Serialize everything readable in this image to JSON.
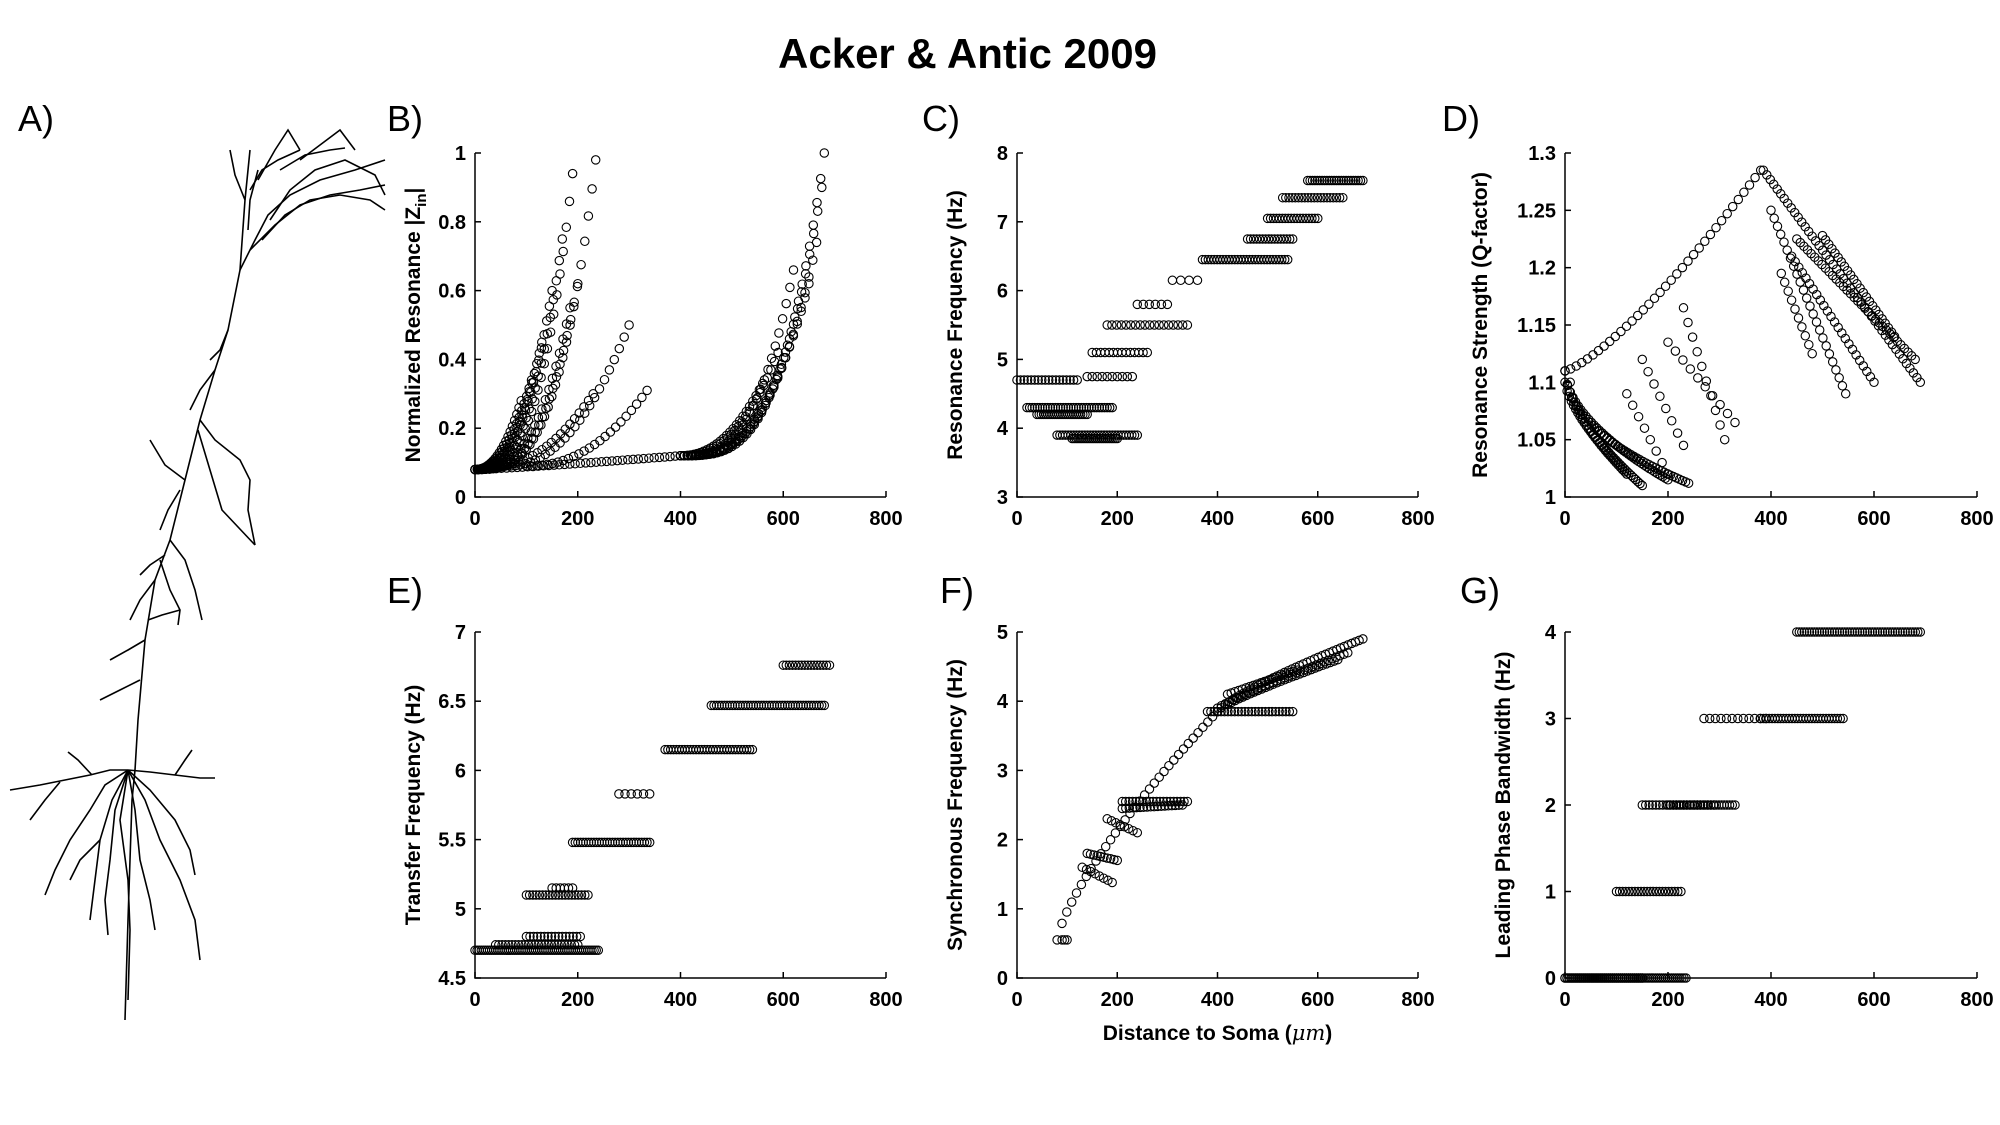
{
  "figure": {
    "title": "Acker & Antic 2009",
    "panel_labels": [
      "A)",
      "B)",
      "C)",
      "D)",
      "E)",
      "F)",
      "G)"
    ],
    "xlabel_shared": "Distance to Soma (",
    "xlabel_unit": "μm",
    "xlabel_close": ")",
    "neuron_icon": "pyramidal-neuron-morphology-icon"
  },
  "chart_data": [
    {
      "panel": "B)",
      "type": "scatter",
      "title": "",
      "xlabel": "",
      "ylabel": "Normalized Resonance |Z",
      "ylabel_sub": "in",
      "ylabel_close": "|",
      "xlim": [
        0,
        800
      ],
      "ylim": [
        0,
        1
      ],
      "xticks": [
        0,
        200,
        400,
        600,
        800
      ],
      "yticks": [
        0,
        0.2,
        0.4,
        0.6,
        0.8,
        1
      ],
      "ytick_labels": [
        "0",
        "0.2",
        "0.4",
        "0.6",
        "0.8",
        "1"
      ],
      "grid": false,
      "branches": [
        {
          "x0": 0,
          "x1": 90,
          "y0": 0.08,
          "y1": 0.28,
          "n": 22,
          "p": 2.2
        },
        {
          "x0": 0,
          "x1": 110,
          "y0": 0.08,
          "y1": 0.34,
          "n": 24,
          "p": 2.2
        },
        {
          "x0": 0,
          "x1": 130,
          "y0": 0.08,
          "y1": 0.45,
          "n": 28,
          "p": 2.4
        },
        {
          "x0": 0,
          "x1": 150,
          "y0": 0.08,
          "y1": 0.6,
          "n": 30,
          "p": 2.6
        },
        {
          "x0": 0,
          "x1": 170,
          "y0": 0.08,
          "y1": 0.75,
          "n": 30,
          "p": 2.8
        },
        {
          "x0": 0,
          "x1": 190,
          "y0": 0.08,
          "y1": 0.94,
          "n": 32,
          "p": 3.0
        },
        {
          "x0": 0,
          "x1": 235,
          "y0": 0.08,
          "y1": 0.98,
          "n": 34,
          "p": 3.2
        },
        {
          "x0": 0,
          "x1": 200,
          "y0": 0.08,
          "y1": 0.62,
          "n": 30,
          "p": 3.0
        },
        {
          "x0": 0,
          "x1": 185,
          "y0": 0.08,
          "y1": 0.55,
          "n": 28,
          "p": 2.8
        },
        {
          "x0": 40,
          "x1": 230,
          "y0": 0.09,
          "y1": 0.3,
          "n": 22,
          "p": 2.0
        },
        {
          "x0": 60,
          "x1": 300,
          "y0": 0.09,
          "y1": 0.5,
          "n": 26,
          "p": 2.2
        },
        {
          "x0": 100,
          "x1": 335,
          "y0": 0.09,
          "y1": 0.31,
          "n": 24,
          "p": 2.2
        },
        {
          "x0": 0,
          "x1": 400,
          "y0": 0.08,
          "y1": 0.12,
          "n": 40,
          "p": 1.2
        },
        {
          "x0": 400,
          "x1": 680,
          "y0": 0.12,
          "y1": 1.0,
          "n": 40,
          "p": 3.4
        },
        {
          "x0": 400,
          "x1": 665,
          "y0": 0.12,
          "y1": 0.74,
          "n": 36,
          "p": 3.0
        },
        {
          "x0": 400,
          "x1": 650,
          "y0": 0.12,
          "y1": 0.62,
          "n": 34,
          "p": 2.8
        },
        {
          "x0": 400,
          "x1": 620,
          "y0": 0.12,
          "y1": 0.66,
          "n": 32,
          "p": 3.0
        },
        {
          "x0": 400,
          "x1": 590,
          "y0": 0.12,
          "y1": 0.42,
          "n": 28,
          "p": 2.4
        },
        {
          "x0": 400,
          "x1": 560,
          "y0": 0.12,
          "y1": 0.33,
          "n": 26,
          "p": 2.2
        },
        {
          "x0": 400,
          "x1": 675,
          "y0": 0.12,
          "y1": 0.9,
          "n": 36,
          "p": 3.2
        }
      ]
    },
    {
      "panel": "C)",
      "type": "scatter",
      "title": "",
      "xlabel": "",
      "ylabel": "Resonance Frequency (Hz)",
      "xlim": [
        0,
        800
      ],
      "ylim": [
        3,
        8
      ],
      "xticks": [
        0,
        200,
        400,
        600,
        800
      ],
      "yticks": [
        3,
        4,
        5,
        6,
        7,
        8
      ],
      "ytick_labels": [
        "3",
        "4",
        "5",
        "6",
        "7",
        "8"
      ],
      "grid": false,
      "runs": [
        {
          "x0": 0,
          "x1": 120,
          "y": 4.7,
          "n": 18
        },
        {
          "x0": 20,
          "x1": 190,
          "y": 4.3,
          "n": 34
        },
        {
          "x0": 40,
          "x1": 140,
          "y": 4.2,
          "n": 24
        },
        {
          "x0": 80,
          "x1": 240,
          "y": 3.9,
          "n": 30
        },
        {
          "x0": 110,
          "x1": 200,
          "y": 3.85,
          "n": 24
        },
        {
          "x0": 140,
          "x1": 230,
          "y": 4.75,
          "n": 10
        },
        {
          "x0": 150,
          "x1": 260,
          "y": 5.1,
          "n": 14
        },
        {
          "x0": 180,
          "x1": 340,
          "y": 5.5,
          "n": 18
        },
        {
          "x0": 240,
          "x1": 300,
          "y": 5.8,
          "n": 6
        },
        {
          "x0": 310,
          "x1": 360,
          "y": 6.15,
          "n": 4
        },
        {
          "x0": 370,
          "x1": 540,
          "y": 6.45,
          "n": 30
        },
        {
          "x0": 460,
          "x1": 550,
          "y": 6.75,
          "n": 16
        },
        {
          "x0": 500,
          "x1": 600,
          "y": 7.05,
          "n": 18
        },
        {
          "x0": 530,
          "x1": 650,
          "y": 7.35,
          "n": 20
        },
        {
          "x0": 580,
          "x1": 690,
          "y": 7.6,
          "n": 24
        }
      ]
    },
    {
      "panel": "D)",
      "type": "scatter",
      "title": "",
      "xlabel": "",
      "ylabel": "Resonance Strength (Q-factor)",
      "xlim": [
        0,
        800
      ],
      "ylim": [
        1,
        1.3
      ],
      "xticks": [
        0,
        200,
        400,
        600,
        800
      ],
      "yticks": [
        1,
        1.05,
        1.1,
        1.15,
        1.2,
        1.25,
        1.3
      ],
      "ytick_labels": [
        "1",
        "1.05",
        "1.1",
        "1.15",
        "1.2",
        "1.25",
        "1.3"
      ],
      "grid": false,
      "branches": [
        {
          "x0": 0,
          "x1": 380,
          "y0": 1.11,
          "y1": 1.285,
          "n": 36,
          "p": 1.3
        },
        {
          "x0": 0,
          "x1": 150,
          "y0": 1.11,
          "y1": 1.01,
          "n": 36,
          "p": 0.6
        },
        {
          "x0": 0,
          "x1": 200,
          "y0": 1.11,
          "y1": 1.015,
          "n": 40,
          "p": 0.55
        },
        {
          "x0": 10,
          "x1": 240,
          "y0": 1.1,
          "y1": 1.012,
          "n": 40,
          "p": 0.5
        },
        {
          "x0": 0,
          "x1": 120,
          "y0": 1.1,
          "y1": 1.02,
          "n": 30,
          "p": 0.7
        },
        {
          "x0": 150,
          "x1": 230,
          "y0": 1.12,
          "y1": 1.045,
          "n": 8,
          "p": 1
        },
        {
          "x0": 200,
          "x1": 330,
          "y0": 1.135,
          "y1": 1.065,
          "n": 10,
          "p": 1
        },
        {
          "x0": 230,
          "x1": 310,
          "y0": 1.165,
          "y1": 1.05,
          "n": 10,
          "p": 1
        },
        {
          "x0": 120,
          "x1": 200,
          "y0": 1.09,
          "y1": 1.02,
          "n": 8,
          "p": 1
        },
        {
          "x0": 385,
          "x1": 690,
          "y0": 1.285,
          "y1": 1.1,
          "n": 46,
          "p": 1
        },
        {
          "x0": 400,
          "x1": 545,
          "y0": 1.25,
          "y1": 1.09,
          "n": 24,
          "p": 1
        },
        {
          "x0": 440,
          "x1": 600,
          "y0": 1.21,
          "y1": 1.1,
          "n": 24,
          "p": 1
        },
        {
          "x0": 450,
          "x1": 680,
          "y0": 1.225,
          "y1": 1.12,
          "n": 34,
          "p": 1
        },
        {
          "x0": 500,
          "x1": 640,
          "y0": 1.228,
          "y1": 1.14,
          "n": 24,
          "p": 1
        },
        {
          "x0": 420,
          "x1": 480,
          "y0": 1.195,
          "y1": 1.125,
          "n": 10,
          "p": 1
        }
      ]
    },
    {
      "panel": "E)",
      "type": "scatter",
      "title": "",
      "xlabel": "",
      "ylabel": "Transfer Frequency (Hz)",
      "xlim": [
        0,
        800
      ],
      "ylim": [
        4.5,
        7
      ],
      "xticks": [
        0,
        200,
        400,
        600,
        800
      ],
      "yticks": [
        4.5,
        5,
        5.5,
        6,
        6.5,
        7
      ],
      "ytick_labels": [
        "4.5",
        "5",
        "5.5",
        "6",
        "6.5",
        "7"
      ],
      "grid": false,
      "runs": [
        {
          "x0": 0,
          "x1": 240,
          "y": 4.7,
          "n": 60
        },
        {
          "x0": 40,
          "x1": 200,
          "y": 4.74,
          "n": 26
        },
        {
          "x0": 100,
          "x1": 205,
          "y": 4.8,
          "n": 16
        },
        {
          "x0": 100,
          "x1": 220,
          "y": 5.1,
          "n": 20
        },
        {
          "x0": 150,
          "x1": 190,
          "y": 5.15,
          "n": 6
        },
        {
          "x0": 190,
          "x1": 340,
          "y": 5.48,
          "n": 30
        },
        {
          "x0": 280,
          "x1": 340,
          "y": 5.83,
          "n": 6
        },
        {
          "x0": 370,
          "x1": 540,
          "y": 6.15,
          "n": 32
        },
        {
          "x0": 460,
          "x1": 680,
          "y": 6.47,
          "n": 44
        },
        {
          "x0": 600,
          "x1": 690,
          "y": 6.76,
          "n": 16
        }
      ]
    },
    {
      "panel": "F)",
      "type": "scatter",
      "title": "",
      "xlabel": "Distance to Soma (μm)",
      "ylabel": "Synchronous Frequency (Hz)",
      "xlim": [
        0,
        800
      ],
      "ylim": [
        0,
        5
      ],
      "xticks": [
        0,
        200,
        400,
        600,
        800
      ],
      "yticks": [
        0,
        1,
        2,
        3,
        4,
        5
      ],
      "ytick_labels": [
        "0",
        "1",
        "2",
        "3",
        "4",
        "5"
      ],
      "grid": false,
      "branches": [
        {
          "x0": 80,
          "x1": 400,
          "y0": 0.55,
          "y1": 3.85,
          "n": 34,
          "p": 0.75
        },
        {
          "x0": 400,
          "x1": 690,
          "y0": 3.85,
          "y1": 4.9,
          "n": 40,
          "p": 0.8
        },
        {
          "x0": 400,
          "x1": 660,
          "y0": 3.9,
          "y1": 4.7,
          "n": 34,
          "p": 0.9
        },
        {
          "x0": 420,
          "x1": 640,
          "y0": 3.95,
          "y1": 4.6,
          "n": 30,
          "p": 0.9
        },
        {
          "x0": 380,
          "x1": 550,
          "y0": 3.85,
          "y1": 3.85,
          "n": 26,
          "p": 1
        },
        {
          "x0": 420,
          "x1": 560,
          "y0": 4.1,
          "y1": 4.45,
          "n": 20,
          "p": 1
        },
        {
          "x0": 210,
          "x1": 340,
          "y0": 2.55,
          "y1": 2.55,
          "n": 20,
          "p": 1
        },
        {
          "x0": 210,
          "x1": 330,
          "y0": 2.45,
          "y1": 2.5,
          "n": 18,
          "p": 1
        },
        {
          "x0": 180,
          "x1": 240,
          "y0": 2.3,
          "y1": 2.1,
          "n": 8,
          "p": 1
        },
        {
          "x0": 140,
          "x1": 200,
          "y0": 1.8,
          "y1": 1.7,
          "n": 10,
          "p": 1
        },
        {
          "x0": 130,
          "x1": 190,
          "y0": 1.6,
          "y1": 1.38,
          "n": 8,
          "p": 1
        },
        {
          "x0": 90,
          "x1": 100,
          "y0": 0.55,
          "y1": 0.55,
          "n": 3,
          "p": 1
        }
      ]
    },
    {
      "panel": "G)",
      "type": "scatter",
      "title": "",
      "xlabel": "",
      "ylabel": "Leading Phase Bandwidth (Hz)",
      "xlim": [
        0,
        800
      ],
      "ylim": [
        0,
        4
      ],
      "xticks": [
        0,
        200,
        400,
        600,
        800
      ],
      "yticks": [
        0,
        1,
        2,
        3,
        4
      ],
      "ytick_labels": [
        "0",
        "1",
        "2",
        "3",
        "4"
      ],
      "grid": false,
      "runs": [
        {
          "x0": 0,
          "x1": 235,
          "y": 0,
          "n": 60
        },
        {
          "x0": 0,
          "x1": 150,
          "y": 0,
          "n": 40
        },
        {
          "x0": 100,
          "x1": 225,
          "y": 1,
          "n": 22
        },
        {
          "x0": 200,
          "x1": 330,
          "y": 2,
          "n": 26
        },
        {
          "x0": 150,
          "x1": 290,
          "y": 2,
          "n": 22
        },
        {
          "x0": 270,
          "x1": 390,
          "y": 3,
          "n": 12
        },
        {
          "x0": 380,
          "x1": 540,
          "y": 3,
          "n": 30
        },
        {
          "x0": 450,
          "x1": 690,
          "y": 4,
          "n": 50
        }
      ]
    }
  ]
}
